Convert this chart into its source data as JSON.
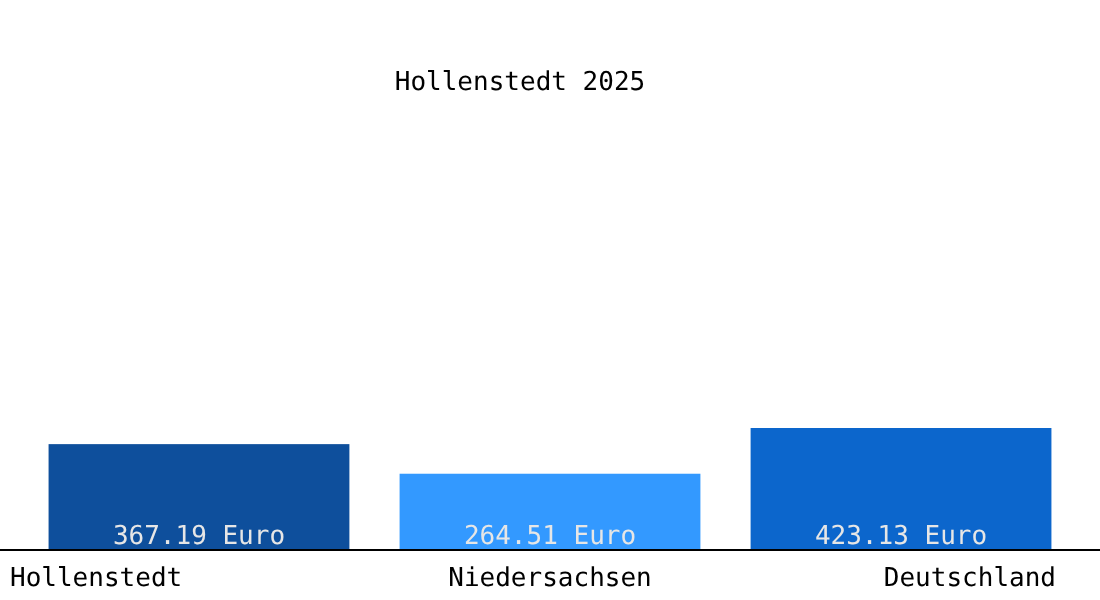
{
  "chart_data": {
    "type": "bar",
    "title": "Hollenstedt 2025",
    "categories": [
      "Hollenstedt",
      "Niedersachsen",
      "Deutschland"
    ],
    "values": [
      367.19,
      264.51,
      423.13
    ],
    "colors": [
      "#0e4f9c",
      "#3399ff",
      "#0c66cc"
    ],
    "value_labels": [
      "367.19 Euro",
      "264.51 Euro",
      "423.13 Euro"
    ],
    "tick_labels": "x"
  }
}
